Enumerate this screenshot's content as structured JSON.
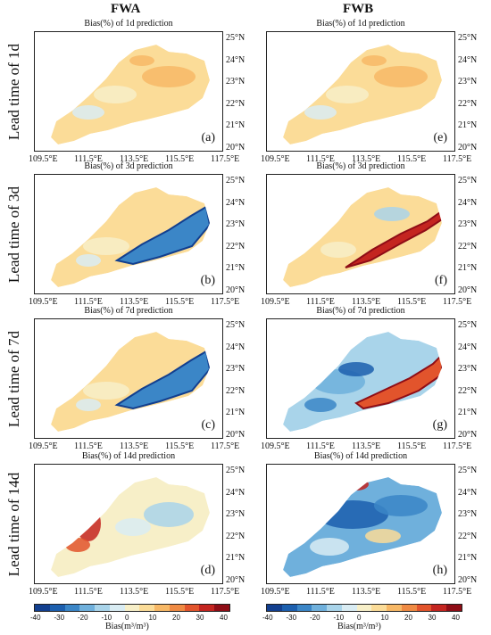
{
  "columns": [
    "FWA",
    "FWB"
  ],
  "rows": [
    {
      "label": "Lead time of 1d",
      "title": "Bias(%) of 1d prediction",
      "letters": [
        "(a)",
        "(e)"
      ],
      "modes": [
        "warm",
        "warm"
      ]
    },
    {
      "label": "Lead time of 3d",
      "title": "Bias(%) of 3d prediction",
      "letters": [
        "(b)",
        "(f)"
      ],
      "modes": [
        "cold-east",
        "hot-east"
      ]
    },
    {
      "label": "Lead time of 7d",
      "title": "Bias(%) of 7d prediction",
      "letters": [
        "(c)",
        "(g)"
      ],
      "modes": [
        "cold-east",
        "mixed-hot"
      ]
    },
    {
      "label": "Lead time of 14d",
      "title": "Bias(%) of 14d prediction",
      "letters": [
        "(d)",
        "(h)"
      ],
      "modes": [
        "hot-west",
        "cold-mixed"
      ]
    }
  ],
  "lat_labels": [
    "25°N",
    "24°N",
    "23°N",
    "22°N",
    "21°N",
    "20°N"
  ],
  "lon_labels": [
    "109.5°E",
    "111.5°E",
    "113.5°E",
    "115.5°E",
    "117.5°E"
  ],
  "colorbar": {
    "ticks": [
      "-40",
      "-30",
      "-20",
      "-10",
      "0",
      "10",
      "20",
      "30",
      "40"
    ],
    "label": "Bias(m³/m³)",
    "colors": [
      "#123f8f",
      "#1c5fae",
      "#3b86c7",
      "#6fb0dc",
      "#a9d4ea",
      "#d9ecf3",
      "#f7efc8",
      "#fbdc98",
      "#f7b866",
      "#ef8a43",
      "#e2542c",
      "#c42520",
      "#8f0d16"
    ]
  }
}
